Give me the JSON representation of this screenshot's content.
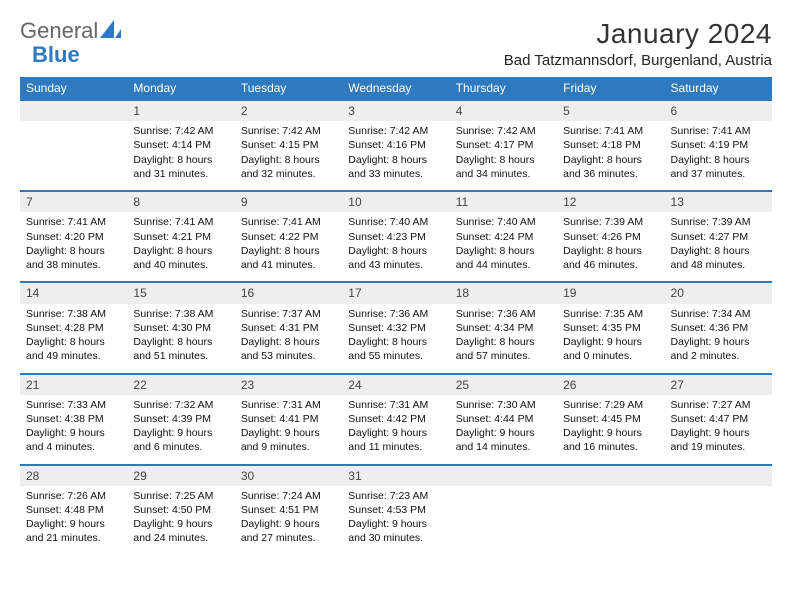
{
  "logo": {
    "text1": "General",
    "text2": "Blue"
  },
  "title": "January 2024",
  "location": "Bad Tatzmannsdorf, Burgenland, Austria",
  "colors": {
    "header_bg": "#2f79bf",
    "header_fg": "#ffffff",
    "daynum_bg": "#eeeeee",
    "daynum_border": "#2f79bf"
  },
  "weekdays": [
    "Sunday",
    "Monday",
    "Tuesday",
    "Wednesday",
    "Thursday",
    "Friday",
    "Saturday"
  ],
  "weeks": [
    {
      "nums": [
        "",
        "1",
        "2",
        "3",
        "4",
        "5",
        "6"
      ],
      "cells": [
        null,
        {
          "sunrise": "Sunrise: 7:42 AM",
          "sunset": "Sunset: 4:14 PM",
          "day1": "Daylight: 8 hours",
          "day2": "and 31 minutes."
        },
        {
          "sunrise": "Sunrise: 7:42 AM",
          "sunset": "Sunset: 4:15 PM",
          "day1": "Daylight: 8 hours",
          "day2": "and 32 minutes."
        },
        {
          "sunrise": "Sunrise: 7:42 AM",
          "sunset": "Sunset: 4:16 PM",
          "day1": "Daylight: 8 hours",
          "day2": "and 33 minutes."
        },
        {
          "sunrise": "Sunrise: 7:42 AM",
          "sunset": "Sunset: 4:17 PM",
          "day1": "Daylight: 8 hours",
          "day2": "and 34 minutes."
        },
        {
          "sunrise": "Sunrise: 7:41 AM",
          "sunset": "Sunset: 4:18 PM",
          "day1": "Daylight: 8 hours",
          "day2": "and 36 minutes."
        },
        {
          "sunrise": "Sunrise: 7:41 AM",
          "sunset": "Sunset: 4:19 PM",
          "day1": "Daylight: 8 hours",
          "day2": "and 37 minutes."
        }
      ]
    },
    {
      "nums": [
        "7",
        "8",
        "9",
        "10",
        "11",
        "12",
        "13"
      ],
      "cells": [
        {
          "sunrise": "Sunrise: 7:41 AM",
          "sunset": "Sunset: 4:20 PM",
          "day1": "Daylight: 8 hours",
          "day2": "and 38 minutes."
        },
        {
          "sunrise": "Sunrise: 7:41 AM",
          "sunset": "Sunset: 4:21 PM",
          "day1": "Daylight: 8 hours",
          "day2": "and 40 minutes."
        },
        {
          "sunrise": "Sunrise: 7:41 AM",
          "sunset": "Sunset: 4:22 PM",
          "day1": "Daylight: 8 hours",
          "day2": "and 41 minutes."
        },
        {
          "sunrise": "Sunrise: 7:40 AM",
          "sunset": "Sunset: 4:23 PM",
          "day1": "Daylight: 8 hours",
          "day2": "and 43 minutes."
        },
        {
          "sunrise": "Sunrise: 7:40 AM",
          "sunset": "Sunset: 4:24 PM",
          "day1": "Daylight: 8 hours",
          "day2": "and 44 minutes."
        },
        {
          "sunrise": "Sunrise: 7:39 AM",
          "sunset": "Sunset: 4:26 PM",
          "day1": "Daylight: 8 hours",
          "day2": "and 46 minutes."
        },
        {
          "sunrise": "Sunrise: 7:39 AM",
          "sunset": "Sunset: 4:27 PM",
          "day1": "Daylight: 8 hours",
          "day2": "and 48 minutes."
        }
      ]
    },
    {
      "nums": [
        "14",
        "15",
        "16",
        "17",
        "18",
        "19",
        "20"
      ],
      "cells": [
        {
          "sunrise": "Sunrise: 7:38 AM",
          "sunset": "Sunset: 4:28 PM",
          "day1": "Daylight: 8 hours",
          "day2": "and 49 minutes."
        },
        {
          "sunrise": "Sunrise: 7:38 AM",
          "sunset": "Sunset: 4:30 PM",
          "day1": "Daylight: 8 hours",
          "day2": "and 51 minutes."
        },
        {
          "sunrise": "Sunrise: 7:37 AM",
          "sunset": "Sunset: 4:31 PM",
          "day1": "Daylight: 8 hours",
          "day2": "and 53 minutes."
        },
        {
          "sunrise": "Sunrise: 7:36 AM",
          "sunset": "Sunset: 4:32 PM",
          "day1": "Daylight: 8 hours",
          "day2": "and 55 minutes."
        },
        {
          "sunrise": "Sunrise: 7:36 AM",
          "sunset": "Sunset: 4:34 PM",
          "day1": "Daylight: 8 hours",
          "day2": "and 57 minutes."
        },
        {
          "sunrise": "Sunrise: 7:35 AM",
          "sunset": "Sunset: 4:35 PM",
          "day1": "Daylight: 9 hours",
          "day2": "and 0 minutes."
        },
        {
          "sunrise": "Sunrise: 7:34 AM",
          "sunset": "Sunset: 4:36 PM",
          "day1": "Daylight: 9 hours",
          "day2": "and 2 minutes."
        }
      ]
    },
    {
      "nums": [
        "21",
        "22",
        "23",
        "24",
        "25",
        "26",
        "27"
      ],
      "cells": [
        {
          "sunrise": "Sunrise: 7:33 AM",
          "sunset": "Sunset: 4:38 PM",
          "day1": "Daylight: 9 hours",
          "day2": "and 4 minutes."
        },
        {
          "sunrise": "Sunrise: 7:32 AM",
          "sunset": "Sunset: 4:39 PM",
          "day1": "Daylight: 9 hours",
          "day2": "and 6 minutes."
        },
        {
          "sunrise": "Sunrise: 7:31 AM",
          "sunset": "Sunset: 4:41 PM",
          "day1": "Daylight: 9 hours",
          "day2": "and 9 minutes."
        },
        {
          "sunrise": "Sunrise: 7:31 AM",
          "sunset": "Sunset: 4:42 PM",
          "day1": "Daylight: 9 hours",
          "day2": "and 11 minutes."
        },
        {
          "sunrise": "Sunrise: 7:30 AM",
          "sunset": "Sunset: 4:44 PM",
          "day1": "Daylight: 9 hours",
          "day2": "and 14 minutes."
        },
        {
          "sunrise": "Sunrise: 7:29 AM",
          "sunset": "Sunset: 4:45 PM",
          "day1": "Daylight: 9 hours",
          "day2": "and 16 minutes."
        },
        {
          "sunrise": "Sunrise: 7:27 AM",
          "sunset": "Sunset: 4:47 PM",
          "day1": "Daylight: 9 hours",
          "day2": "and 19 minutes."
        }
      ]
    },
    {
      "nums": [
        "28",
        "29",
        "30",
        "31",
        "",
        "",
        ""
      ],
      "cells": [
        {
          "sunrise": "Sunrise: 7:26 AM",
          "sunset": "Sunset: 4:48 PM",
          "day1": "Daylight: 9 hours",
          "day2": "and 21 minutes."
        },
        {
          "sunrise": "Sunrise: 7:25 AM",
          "sunset": "Sunset: 4:50 PM",
          "day1": "Daylight: 9 hours",
          "day2": "and 24 minutes."
        },
        {
          "sunrise": "Sunrise: 7:24 AM",
          "sunset": "Sunset: 4:51 PM",
          "day1": "Daylight: 9 hours",
          "day2": "and 27 minutes."
        },
        {
          "sunrise": "Sunrise: 7:23 AM",
          "sunset": "Sunset: 4:53 PM",
          "day1": "Daylight: 9 hours",
          "day2": "and 30 minutes."
        },
        null,
        null,
        null
      ]
    }
  ]
}
